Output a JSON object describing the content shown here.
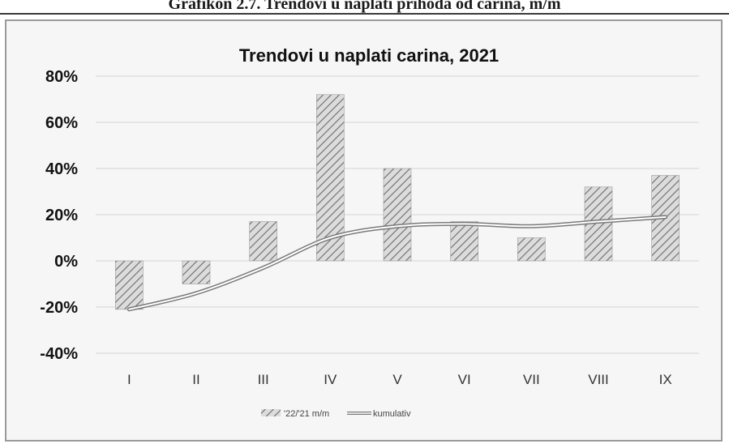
{
  "caption": "Grafikon 2.7. Trendovi u naplati prihoda od carina, m/m",
  "chart_data": {
    "type": "bar",
    "title": "Trendovi u naplati carina, 2021",
    "categories": [
      "I",
      "II",
      "III",
      "IV",
      "V",
      "VI",
      "VII",
      "VIII",
      "IX"
    ],
    "yticks": [
      "80%",
      "60%",
      "40%",
      "20%",
      "0%",
      "-20%",
      "-40%"
    ],
    "ylim": [
      -40,
      80
    ],
    "series": [
      {
        "name": "'22/'21 m/m",
        "type": "bar",
        "values": [
          -21,
          -10,
          17,
          72,
          40,
          17,
          10,
          32,
          37
        ]
      },
      {
        "name": "kumulativ",
        "type": "line",
        "values": [
          -21,
          -14,
          -3,
          10,
          15,
          16,
          15,
          17,
          19
        ]
      }
    ],
    "legend_position": "bottom",
    "grid": true,
    "colors": {
      "bar_fill": "#c8c8c8",
      "bar_hatch": "#6b6b6b",
      "line": "#7a7a7a",
      "grid": "#d4d4d4"
    }
  }
}
